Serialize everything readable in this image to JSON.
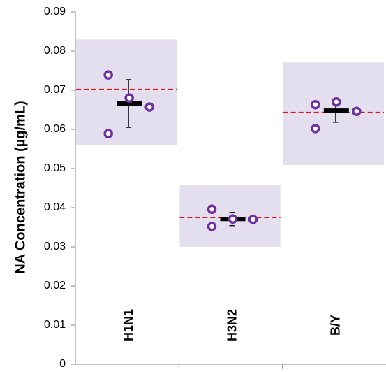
{
  "chart_data": {
    "type": "dot",
    "y_label": "NA Concentration (µg/mL)",
    "categories": [
      "H1N1",
      "H3N2",
      "B/Y"
    ],
    "ranges": [
      [
        0.0559,
        0.083
      ],
      [
        0.03,
        0.0457
      ],
      [
        0.0509,
        0.0771
      ]
    ],
    "reference": [
      0.0702,
      0.0375,
      0.0643
    ],
    "points": [
      [
        0.0739,
        0.0589,
        0.068,
        0.0657
      ],
      [
        0.0396,
        0.0352,
        0.0371,
        0.037
      ],
      [
        0.0663,
        0.0602,
        0.067,
        0.0646
      ]
    ],
    "means": [
      0.0666,
      0.0371,
      0.0648
    ],
    "errors": [
      0.0061,
      0.0017,
      0.003
    ],
    "range_color": "#e4dfee",
    "reference_color": "#e8141b",
    "point_color": "#7030a0",
    "mean_color": "#000000",
    "ylim": [
      0,
      0.09
    ],
    "yticks": [
      0,
      0.01,
      0.02,
      0.03,
      0.04,
      0.05,
      0.06,
      0.07,
      0.08,
      0.09
    ]
  }
}
